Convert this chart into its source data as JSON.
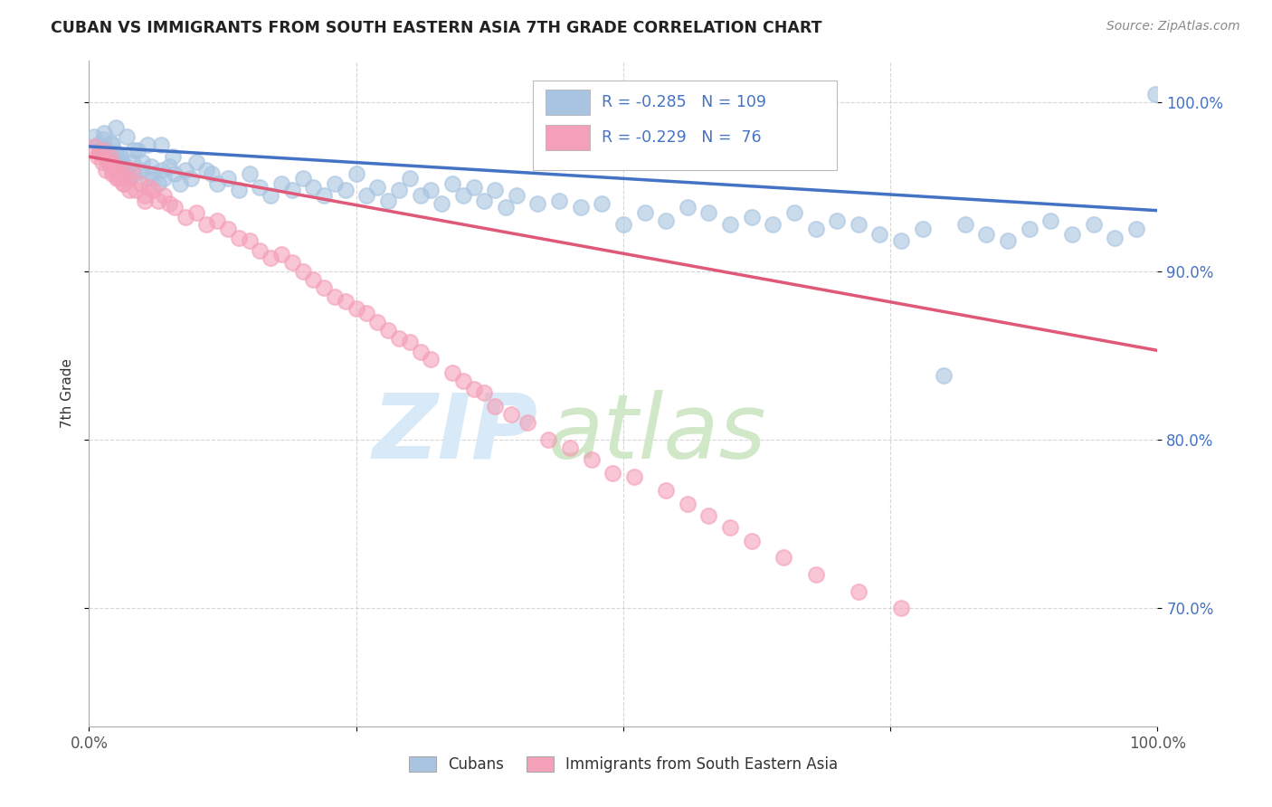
{
  "title": "CUBAN VS IMMIGRANTS FROM SOUTH EASTERN ASIA 7TH GRADE CORRELATION CHART",
  "source": "Source: ZipAtlas.com",
  "ylabel": "7th Grade",
  "xlim": [
    0.0,
    1.0
  ],
  "ylim": [
    0.63,
    1.025
  ],
  "yticks": [
    0.7,
    0.8,
    0.9,
    1.0
  ],
  "ytick_labels": [
    "70.0%",
    "80.0%",
    "90.0%",
    "100.0%"
  ],
  "xticks": [
    0.0,
    0.25,
    0.5,
    0.75,
    1.0
  ],
  "xtick_labels": [
    "0.0%",
    "",
    "",
    "",
    "100.0%"
  ],
  "blue_R": -0.285,
  "blue_N": 109,
  "pink_R": -0.229,
  "pink_N": 76,
  "blue_color": "#a8c4e0",
  "pink_color": "#f4a0b8",
  "blue_line_color": "#4472c4",
  "pink_line_color": "#e05878",
  "legend_label_blue": "Cubans",
  "legend_label_pink": "Immigrants from South Eastern Asia",
  "blue_intercept": 0.974,
  "blue_slope": -0.038,
  "pink_intercept": 0.968,
  "pink_slope": -0.115,
  "blue_x": [
    0.005,
    0.008,
    0.01,
    0.012,
    0.013,
    0.015,
    0.016,
    0.017,
    0.018,
    0.019,
    0.02,
    0.022,
    0.023,
    0.024,
    0.025,
    0.027,
    0.028,
    0.03,
    0.032,
    0.034,
    0.036,
    0.038,
    0.04,
    0.042,
    0.045,
    0.048,
    0.05,
    0.055,
    0.058,
    0.06,
    0.065,
    0.068,
    0.07,
    0.075,
    0.08,
    0.085,
    0.09,
    0.095,
    0.1,
    0.11,
    0.115,
    0.12,
    0.13,
    0.14,
    0.15,
    0.16,
    0.17,
    0.18,
    0.19,
    0.2,
    0.21,
    0.22,
    0.23,
    0.24,
    0.25,
    0.26,
    0.27,
    0.28,
    0.29,
    0.3,
    0.31,
    0.32,
    0.33,
    0.34,
    0.35,
    0.36,
    0.37,
    0.38,
    0.39,
    0.4,
    0.42,
    0.44,
    0.46,
    0.48,
    0.5,
    0.52,
    0.54,
    0.56,
    0.58,
    0.6,
    0.62,
    0.64,
    0.66,
    0.68,
    0.7,
    0.72,
    0.74,
    0.76,
    0.78,
    0.8,
    0.82,
    0.84,
    0.86,
    0.88,
    0.9,
    0.92,
    0.94,
    0.96,
    0.98,
    0.998,
    0.025,
    0.035,
    0.055,
    0.014,
    0.021,
    0.029,
    0.042,
    0.067,
    0.078
  ],
  "blue_y": [
    0.98,
    0.975,
    0.972,
    0.97,
    0.978,
    0.974,
    0.968,
    0.972,
    0.965,
    0.97,
    0.968,
    0.975,
    0.962,
    0.965,
    0.97,
    0.96,
    0.968,
    0.965,
    0.958,
    0.962,
    0.96,
    0.955,
    0.965,
    0.958,
    0.972,
    0.96,
    0.965,
    0.955,
    0.962,
    0.958,
    0.952,
    0.96,
    0.955,
    0.962,
    0.958,
    0.952,
    0.96,
    0.955,
    0.965,
    0.96,
    0.958,
    0.952,
    0.955,
    0.948,
    0.958,
    0.95,
    0.945,
    0.952,
    0.948,
    0.955,
    0.95,
    0.945,
    0.952,
    0.948,
    0.958,
    0.945,
    0.95,
    0.942,
    0.948,
    0.955,
    0.945,
    0.948,
    0.94,
    0.952,
    0.945,
    0.95,
    0.942,
    0.948,
    0.938,
    0.945,
    0.94,
    0.942,
    0.938,
    0.94,
    0.928,
    0.935,
    0.93,
    0.938,
    0.935,
    0.928,
    0.932,
    0.928,
    0.935,
    0.925,
    0.93,
    0.928,
    0.922,
    0.918,
    0.925,
    0.838,
    0.928,
    0.922,
    0.918,
    0.925,
    0.93,
    0.922,
    0.928,
    0.92,
    0.925,
    1.005,
    0.985,
    0.98,
    0.975,
    0.982,
    0.976,
    0.968,
    0.972,
    0.975,
    0.968
  ],
  "pink_x": [
    0.005,
    0.008,
    0.01,
    0.012,
    0.014,
    0.016,
    0.018,
    0.02,
    0.022,
    0.024,
    0.026,
    0.028,
    0.03,
    0.033,
    0.036,
    0.04,
    0.044,
    0.048,
    0.052,
    0.056,
    0.06,
    0.065,
    0.07,
    0.075,
    0.08,
    0.09,
    0.1,
    0.11,
    0.12,
    0.13,
    0.14,
    0.15,
    0.16,
    0.17,
    0.18,
    0.19,
    0.2,
    0.21,
    0.22,
    0.23,
    0.24,
    0.25,
    0.26,
    0.27,
    0.28,
    0.29,
    0.3,
    0.31,
    0.32,
    0.34,
    0.35,
    0.36,
    0.37,
    0.38,
    0.395,
    0.41,
    0.43,
    0.45,
    0.47,
    0.49,
    0.51,
    0.54,
    0.56,
    0.58,
    0.6,
    0.62,
    0.65,
    0.68,
    0.72,
    0.76,
    0.022,
    0.028,
    0.038,
    0.052,
    0.018,
    0.032
  ],
  "pink_y": [
    0.974,
    0.968,
    0.97,
    0.965,
    0.972,
    0.96,
    0.965,
    0.968,
    0.958,
    0.962,
    0.955,
    0.96,
    0.958,
    0.952,
    0.955,
    0.96,
    0.948,
    0.952,
    0.945,
    0.95,
    0.948,
    0.942,
    0.945,
    0.94,
    0.938,
    0.932,
    0.935,
    0.928,
    0.93,
    0.925,
    0.92,
    0.918,
    0.912,
    0.908,
    0.91,
    0.905,
    0.9,
    0.895,
    0.89,
    0.885,
    0.882,
    0.878,
    0.875,
    0.87,
    0.865,
    0.86,
    0.858,
    0.852,
    0.848,
    0.84,
    0.835,
    0.83,
    0.828,
    0.82,
    0.815,
    0.81,
    0.8,
    0.795,
    0.788,
    0.78,
    0.778,
    0.77,
    0.762,
    0.755,
    0.748,
    0.74,
    0.73,
    0.72,
    0.71,
    0.7,
    0.96,
    0.955,
    0.948,
    0.942,
    0.965,
    0.952
  ],
  "watermark_zip_color": "#d8eaf7",
  "watermark_atlas_color": "#d0e8c8"
}
